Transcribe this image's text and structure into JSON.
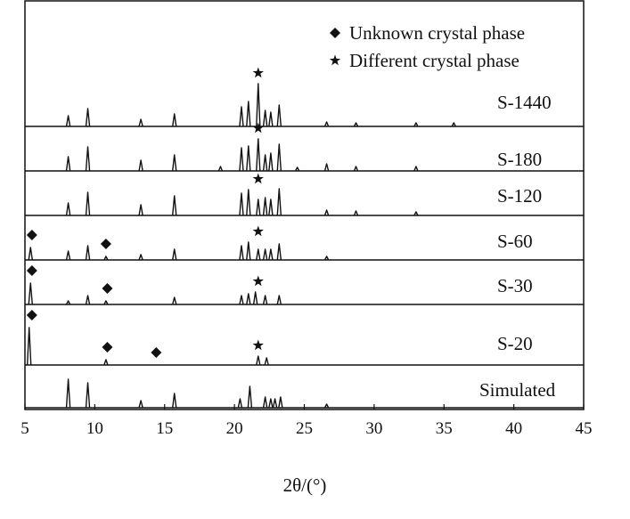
{
  "chart_data": {
    "type": "xrd-stack",
    "xlabel": "2θ/(°)",
    "xlim": [
      5,
      45
    ],
    "xticks": [
      5,
      10,
      15,
      20,
      25,
      30,
      35,
      40,
      45
    ],
    "legend": [
      {
        "symbol": "diamond",
        "label": "Unknown crystal phase"
      },
      {
        "symbol": "star",
        "label": "Different crystal phase"
      }
    ],
    "series": [
      {
        "name": "S-1440",
        "color": "#111111",
        "x": [
          8.1,
          9.5,
          13.3,
          15.7,
          20.5,
          21.0,
          21.7,
          22.2,
          22.6,
          23.2,
          26.6,
          28.7,
          33.0,
          35.7
        ],
        "values": [
          12,
          20,
          8,
          14,
          22,
          28,
          48,
          18,
          16,
          24,
          5,
          4,
          4,
          4
        ],
        "diamonds": [],
        "stars": [
          21.7
        ]
      },
      {
        "name": "S-180",
        "color": "#111111",
        "x": [
          8.1,
          9.5,
          13.3,
          15.7,
          19.0,
          20.5,
          21.0,
          21.7,
          22.2,
          22.6,
          23.2,
          24.5,
          26.6,
          28.7,
          33.0
        ],
        "values": [
          16,
          27,
          12,
          18,
          5,
          26,
          28,
          36,
          18,
          20,
          30,
          4,
          8,
          5,
          5
        ],
        "diamonds": [],
        "stars": [
          21.7
        ]
      },
      {
        "name": "S-120",
        "color": "#111111",
        "x": [
          8.1,
          9.5,
          13.3,
          15.7,
          20.5,
          21.0,
          21.7,
          22.2,
          22.6,
          23.2,
          26.6,
          28.7,
          33.0
        ],
        "values": [
          14,
          26,
          12,
          22,
          25,
          29,
          18,
          20,
          18,
          30,
          6,
          5,
          4
        ],
        "diamonds": [],
        "stars": [
          21.7
        ]
      },
      {
        "name": "S-60",
        "color": "#111111",
        "x": [
          5.4,
          8.1,
          9.5,
          10.8,
          13.3,
          15.7,
          20.5,
          21.0,
          21.7,
          22.2,
          22.6,
          23.2,
          26.6
        ],
        "values": [
          14,
          10,
          16,
          4,
          6,
          12,
          16,
          20,
          12,
          12,
          12,
          18,
          4
        ],
        "diamonds": [
          5.5,
          10.8
        ],
        "stars": [
          21.7
        ]
      },
      {
        "name": "S-30",
        "color": "#111111",
        "x": [
          5.4,
          8.1,
          9.5,
          10.8,
          15.7,
          20.5,
          21.0,
          21.5,
          22.2,
          23.2
        ],
        "values": [
          24,
          4,
          10,
          4,
          8,
          10,
          12,
          14,
          10,
          10
        ],
        "diamonds": [
          5.5,
          10.9
        ],
        "stars": [
          21.7
        ]
      },
      {
        "name": "S-20",
        "color": "#111111",
        "x": [
          5.3,
          10.8,
          21.7,
          22.3
        ],
        "values": [
          42,
          6,
          10,
          8
        ],
        "diamonds": [
          5.5,
          10.9,
          14.4
        ],
        "stars": [
          21.7
        ]
      },
      {
        "name": "Simulated",
        "color": "#111111",
        "x": [
          8.1,
          9.5,
          13.3,
          15.7,
          20.4,
          21.1,
          22.2,
          22.6,
          22.9,
          23.3,
          26.6
        ],
        "values": [
          32,
          28,
          8,
          16,
          10,
          24,
          12,
          10,
          10,
          12,
          4
        ],
        "diamonds": [],
        "stars": []
      }
    ]
  }
}
